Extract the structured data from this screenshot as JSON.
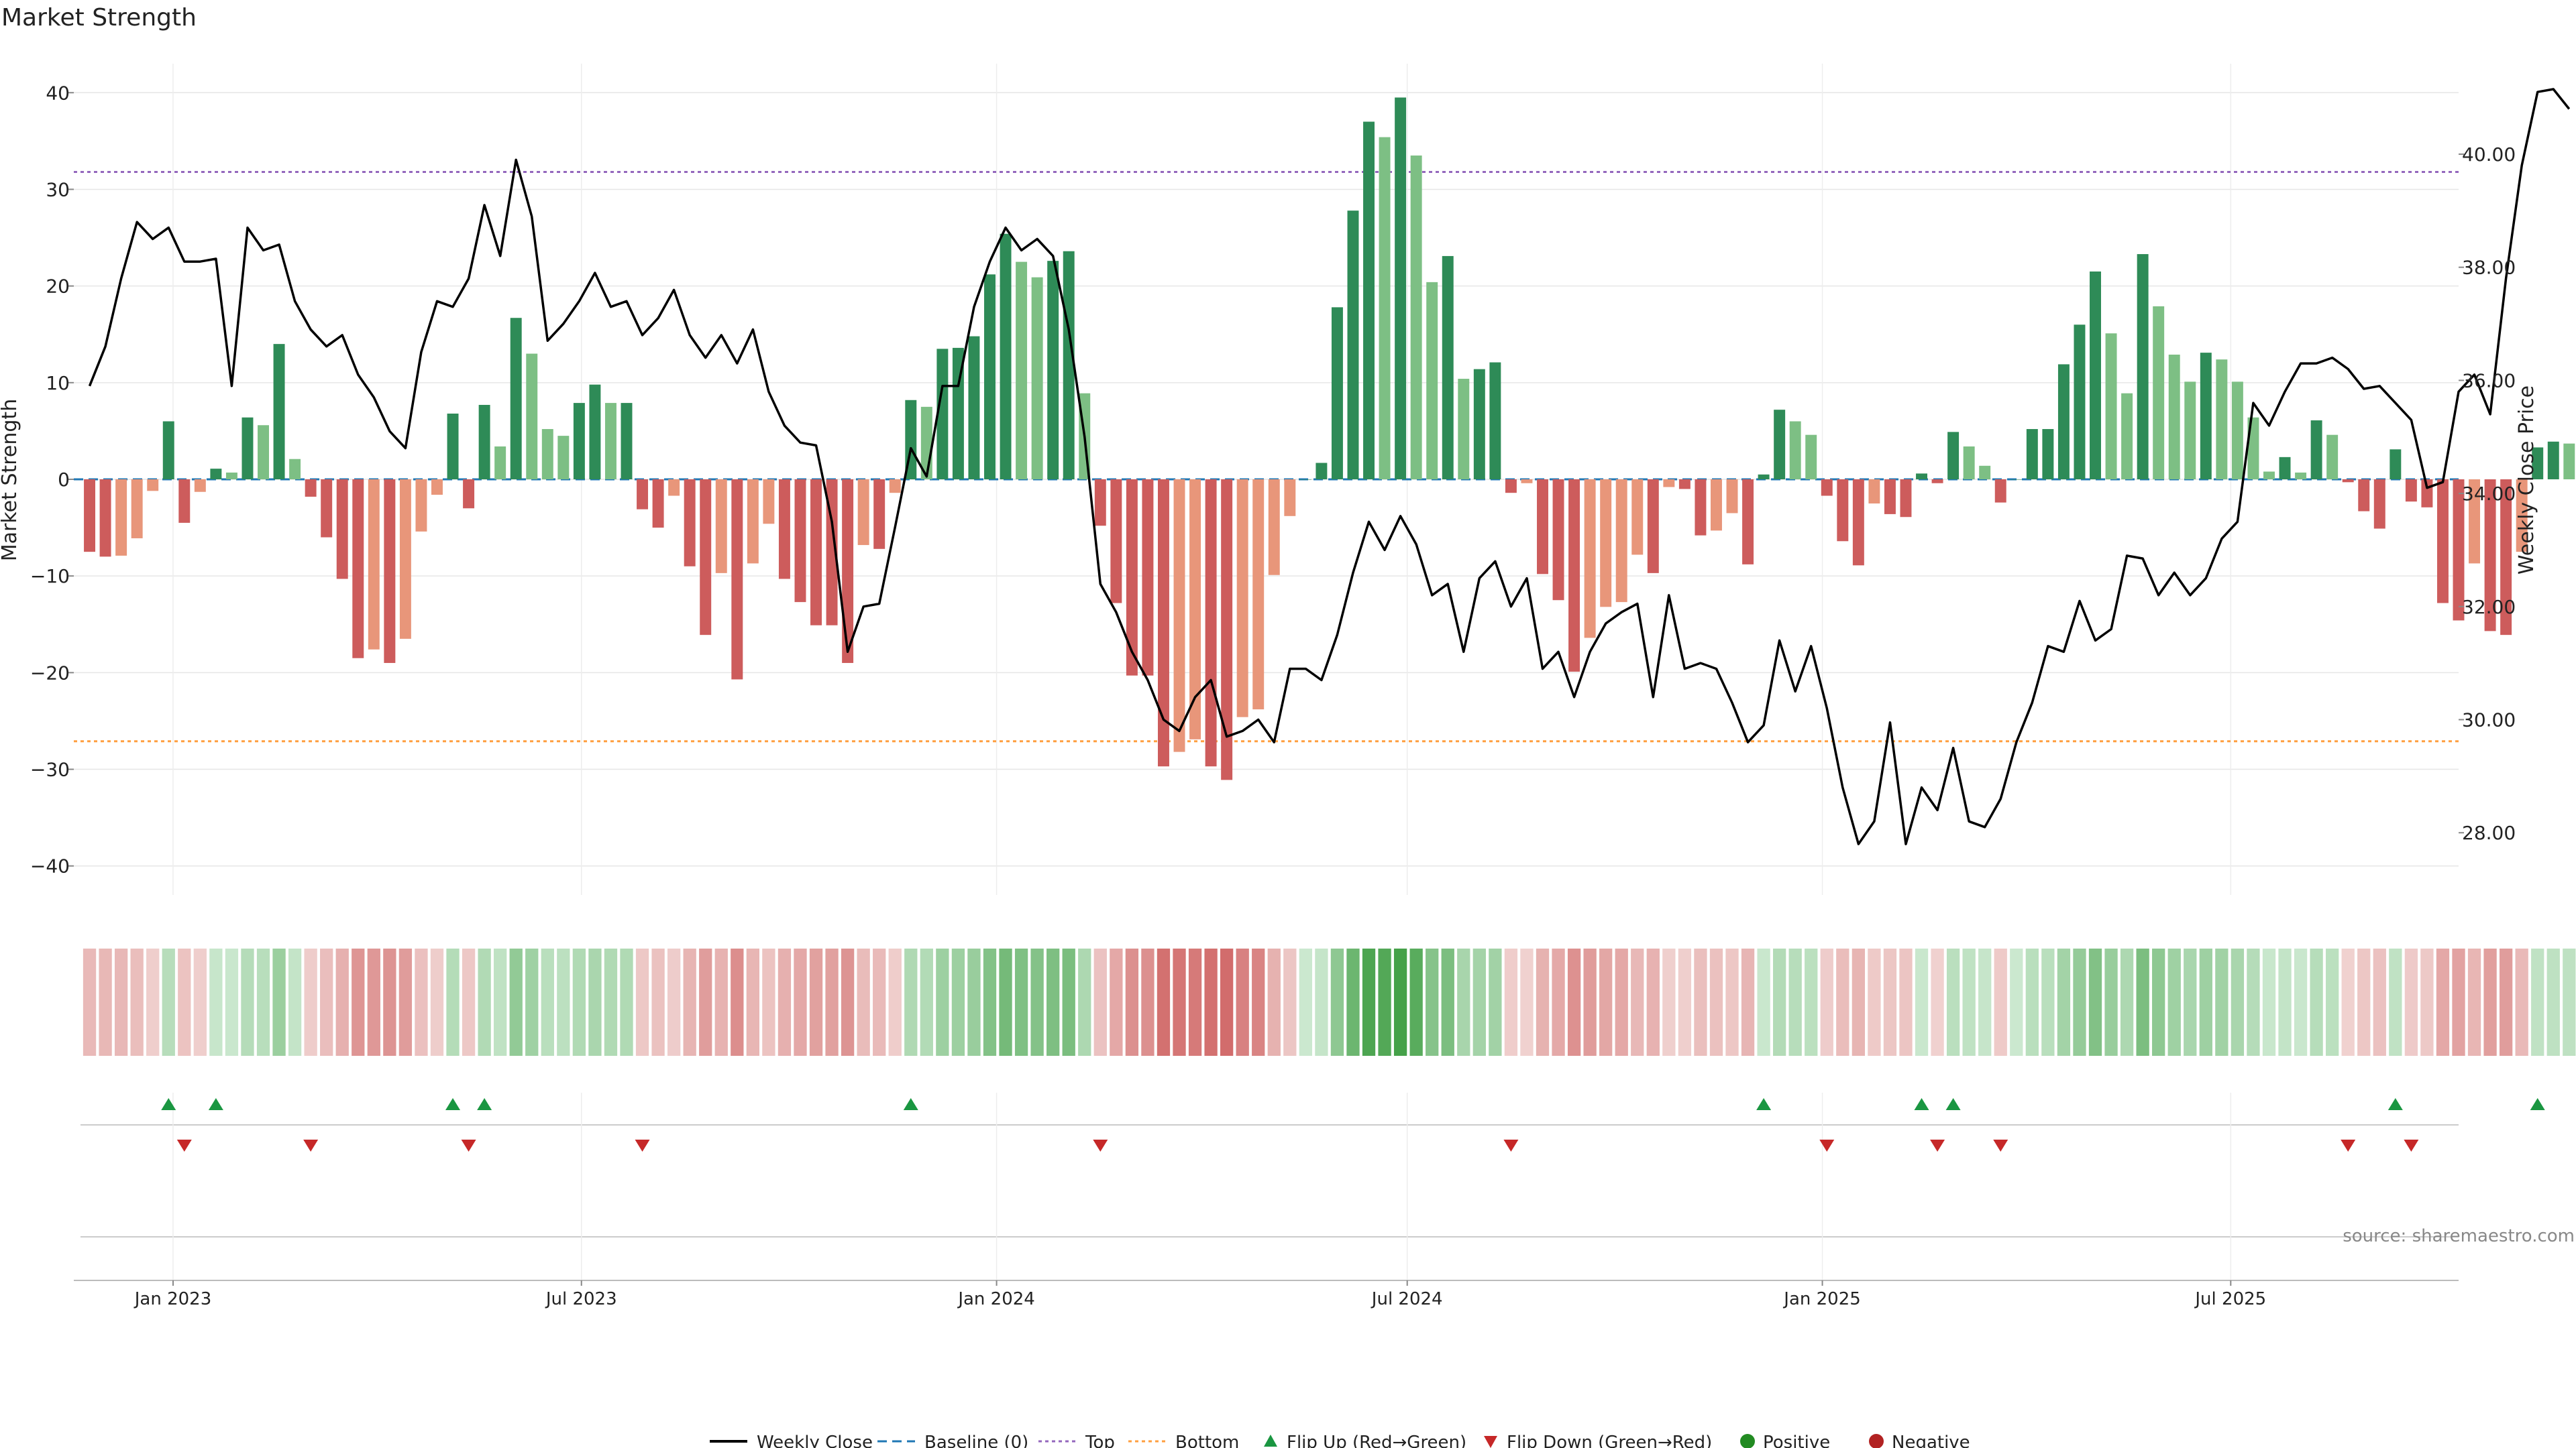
{
  "chart_data": {
    "type": "bar",
    "title": "Market Strength",
    "ylabel": "Market Strength",
    "y2label": "Weekly Close Price",
    "ylim": [
      -43,
      43
    ],
    "y2lim": [
      26.9,
      41.6
    ],
    "yticks": [
      40,
      30,
      20,
      10,
      0,
      -10,
      -20,
      -30,
      -40
    ],
    "yticks_labels": [
      "40",
      "30",
      "20",
      "10",
      "0",
      "−10",
      "−20",
      "−30",
      "−40"
    ],
    "y2ticks": [
      40,
      38,
      36,
      34,
      32,
      30,
      28
    ],
    "y2ticks_labels": [
      "40.00",
      "38.00",
      "36.00",
      "34.00",
      "32.00",
      "30.00",
      "28.00"
    ],
    "x_range": [
      "2022-11-18",
      "2025-10-10"
    ],
    "x_ticks": [
      {
        "date": "2023-01-01",
        "label": "Jan 2023"
      },
      {
        "date": "2023-07-01",
        "label": "Jul 2023"
      },
      {
        "date": "2024-01-01",
        "label": "Jan 2024"
      },
      {
        "date": "2024-07-01",
        "label": "Jul 2024"
      },
      {
        "date": "2025-01-01",
        "label": "Jan 2025"
      },
      {
        "date": "2025-07-01",
        "label": "Jul 2025"
      }
    ],
    "start_date": "2022-11-25",
    "top_level": 31.8,
    "bottom_level": -27.1,
    "colors": {
      "dark_green": "#2e8b57",
      "light_green": "#7dbf84",
      "dark_red": "#cd5c5c",
      "light_red": "#e8967a",
      "price_line": "#000000",
      "top_line": "#9467bd",
      "bottom_line": "#ff9f40",
      "baseline": "#1f77b4",
      "flip_up": "#1a9641",
      "flip_down": "#c62828",
      "positive": "#228b22",
      "negative": "#b22222"
    },
    "strength": [
      -7.5,
      -8,
      -7.9,
      -6.1,
      -1.2,
      6,
      -4.5,
      -1.3,
      1.1,
      0.7,
      6.4,
      5.6,
      14,
      2.1,
      -1.8,
      -6,
      -10.3,
      -18.5,
      -17.6,
      -19,
      -16.5,
      -5.4,
      -1.6,
      6.8,
      -3,
      7.7,
      3.4,
      16.7,
      13,
      5.2,
      4.5,
      7.9,
      9.8,
      7.9,
      7.9,
      -3.1,
      -5,
      -1.7,
      -9,
      -16.1,
      -9.7,
      -20.7,
      -8.7,
      -4.6,
      -10.3,
      -12.7,
      -15.1,
      -15.1,
      -19,
      -6.8,
      -7.2,
      -1.4,
      8.2,
      7.5,
      13.5,
      13.6,
      14.8,
      21.2,
      25.4,
      22.5,
      20.9,
      22.6,
      23.6,
      8.9,
      -4.8,
      -12.8,
      -20.3,
      -20.3,
      -29.7,
      -28.2,
      -26.9,
      -29.7,
      -31.1,
      -24.6,
      -23.8,
      -9.9,
      -3.8,
      0,
      1.7,
      17.8,
      27.8,
      37,
      35.4,
      39.5,
      33.5,
      20.4,
      23.1,
      10.4,
      11.4,
      12.1,
      -1.4,
      -0.4,
      -9.8,
      -12.5,
      -19.9,
      -16.4,
      -13.2,
      -12.7,
      -7.8,
      -9.7,
      -0.8,
      -1,
      -5.8,
      -5.3,
      -3.5,
      -8.8,
      0.5,
      7.2,
      6,
      4.6,
      -1.7,
      -6.4,
      -8.9,
      -2.5,
      -3.6,
      -3.9,
      0.6,
      -0.4,
      4.9,
      3.4,
      1.4,
      -2.4,
      0,
      5.2,
      5.2,
      11.9,
      16,
      21.5,
      15.1,
      8.9,
      23.3,
      17.9,
      12.9,
      10.1,
      13.1,
      12.4,
      10.1,
      6.4,
      0.8,
      2.3,
      0.7,
      6.1,
      4.6,
      -0.3,
      -3.3,
      -5.1,
      3.1,
      -2.3,
      -2.9,
      -12.8,
      -14.6,
      -8.7,
      -15.7,
      -16.1,
      -7.5,
      3.3,
      3.9,
      3.7
    ],
    "price": [
      35.9,
      36.6,
      37.8,
      38.8,
      38.5,
      38.7,
      38.1,
      38.1,
      38.15,
      35.9,
      38.7,
      38.3,
      38.4,
      37.4,
      36.9,
      36.6,
      36.8,
      36.1,
      35.7,
      35.1,
      34.8,
      36.5,
      37.4,
      37.3,
      37.8,
      39.1,
      38.2,
      39.9,
      38.9,
      36.7,
      37,
      37.4,
      37.9,
      37.3,
      37.4,
      36.8,
      37.1,
      37.6,
      36.8,
      36.4,
      36.8,
      36.3,
      36.9,
      35.8,
      35.2,
      34.9,
      34.85,
      33.5,
      31.2,
      32,
      32.05,
      33.4,
      34.8,
      34.3,
      35.9,
      35.9,
      37.3,
      38.1,
      38.7,
      38.3,
      38.5,
      38.2,
      36.9,
      35,
      32.4,
      31.9,
      31.2,
      30.7,
      30,
      29.8,
      30.4,
      30.7,
      29.7,
      29.8,
      30,
      29.6,
      30.9,
      30.9,
      30.7,
      31.5,
      32.6,
      33.5,
      33,
      33.6,
      33.1,
      32.2,
      32.4,
      31.2,
      32.5,
      32.8,
      32,
      32.5,
      30.9,
      31.2,
      30.4,
      31.2,
      31.7,
      31.9,
      32.05,
      30.4,
      32.2,
      30.9,
      31,
      30.9,
      30.3,
      29.6,
      29.9,
      31.4,
      30.5,
      31.3,
      30.2,
      28.8,
      27.8,
      28.2,
      29.95,
      27.8,
      28.8,
      28.4,
      29.5,
      28.2,
      28.1,
      28.6,
      29.6,
      30.3,
      31.3,
      31.2,
      32.1,
      31.4,
      31.6,
      32.9,
      32.85,
      32.2,
      32.6,
      32.2,
      32.5,
      33.2,
      33.5,
      35.6,
      35.2,
      35.8,
      36.3,
      36.3,
      36.4,
      36.2,
      35.85,
      35.9,
      35.6,
      35.3,
      34.1,
      34.2,
      35.8,
      36.1,
      35.4,
      37.8,
      39.8,
      41.1,
      41.15,
      40.8
    ]
  },
  "flip_up_label": "Flip Up (Red→Green)",
  "flip_down_label": "Flip Down (Green→Red)",
  "legend": {
    "weekly_close": "Weekly Close",
    "baseline": "Baseline (0)",
    "top": "Top",
    "bottom": "Bottom",
    "flip_up": "Flip Up (Red→Green)",
    "flip_down": "Flip Down (Green→Red)",
    "positive": "Positive",
    "negative": "Negative"
  },
  "source": "source: sharemaestro.com"
}
